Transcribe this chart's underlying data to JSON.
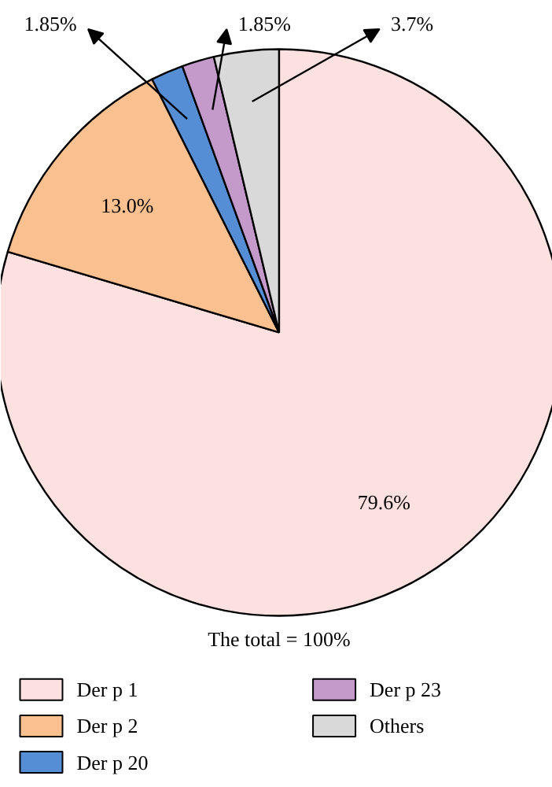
{
  "chart_data": {
    "type": "pie",
    "categories": [
      "Der p 1",
      "Der p 2",
      "Der p 20",
      "Der p 23",
      "Others"
    ],
    "values": [
      79.6,
      13.0,
      1.85,
      1.85,
      3.7
    ],
    "colors": [
      "#fde0e0",
      "#fac090",
      "#558ed5",
      "#c49acb",
      "#d9d9d9"
    ],
    "value_labels": [
      "79.6%",
      "13.0%",
      "1.85%",
      "1.85%",
      "3.7%"
    ],
    "annotations": [
      "The total = 100%"
    ],
    "legend": "bottom"
  }
}
